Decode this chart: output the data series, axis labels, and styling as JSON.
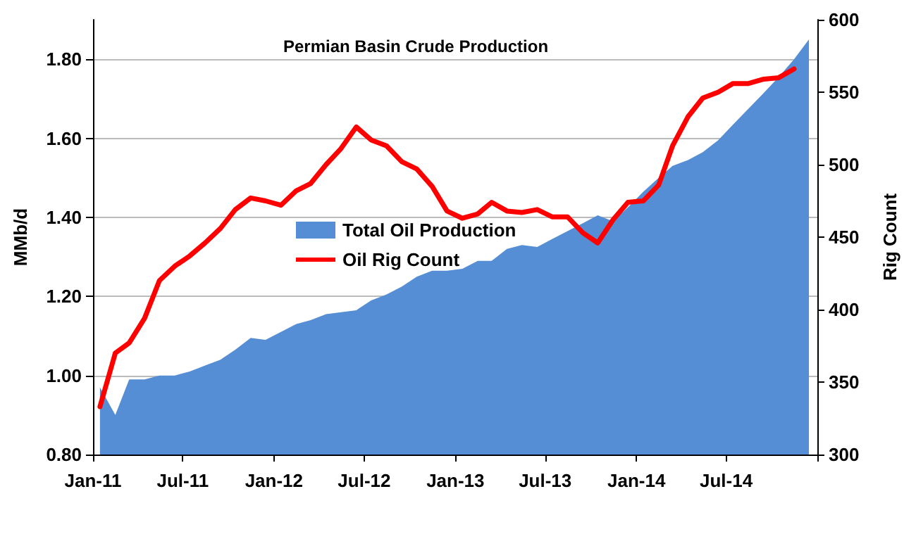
{
  "chart_data": {
    "type": "area",
    "title": "Permian Basin Crude Production",
    "ylabel": "MMb/d",
    "y2label": "Rig Count",
    "x": [
      "2011-01-15",
      "2011-02-15",
      "2011-03-15",
      "2011-04-15",
      "2011-05-15",
      "2011-06-15",
      "2011-07-15",
      "2011-08-15",
      "2011-09-15",
      "2011-10-15",
      "2011-11-15",
      "2011-12-15",
      "2012-01-15",
      "2012-02-15",
      "2012-03-15",
      "2012-04-15",
      "2012-05-15",
      "2012-06-15",
      "2012-07-15",
      "2012-08-15",
      "2012-09-15",
      "2012-10-15",
      "2012-11-15",
      "2012-12-15",
      "2013-01-15",
      "2013-02-15",
      "2013-03-15",
      "2013-04-15",
      "2013-05-15",
      "2013-06-15",
      "2013-07-15",
      "2013-08-15",
      "2013-09-15",
      "2013-10-15",
      "2013-11-15",
      "2013-12-15",
      "2014-01-15",
      "2014-02-15",
      "2014-03-15",
      "2014-04-15",
      "2014-05-15",
      "2014-06-15",
      "2014-07-15",
      "2014-08-15",
      "2014-09-15",
      "2014-10-15",
      "2014-11-15",
      "2014-12-15"
    ],
    "series": [
      {
        "name": "Total Oil Production",
        "color": "#558ed5",
        "values": [
          0.97,
          0.9,
          0.99,
          0.99,
          1.0,
          1.0,
          1.01,
          1.025,
          1.04,
          1.065,
          1.095,
          1.09,
          1.11,
          1.13,
          1.14,
          1.155,
          1.16,
          1.165,
          1.19,
          1.205,
          1.225,
          1.25,
          1.265,
          1.265,
          1.27,
          1.29,
          1.29,
          1.32,
          1.33,
          1.325,
          1.345,
          1.365,
          1.385,
          1.405,
          1.39,
          1.425,
          1.465,
          1.5,
          1.53,
          1.545,
          1.565,
          1.595,
          1.635,
          1.675,
          1.715,
          1.755,
          1.8,
          1.85
        ]
      },
      {
        "name": "Oil Rig Count",
        "type": "line",
        "axis": "y2",
        "color": "#ff0000",
        "values": [
          333,
          370,
          377,
          394,
          420,
          430,
          437,
          446,
          456,
          469,
          477,
          475,
          472,
          482,
          487,
          500,
          511,
          526,
          517,
          513,
          502,
          497,
          485,
          468,
          463,
          466,
          474,
          468,
          467,
          469,
          464,
          464,
          453,
          446,
          462,
          474,
          475,
          486,
          513,
          533,
          546,
          550,
          556,
          556,
          559,
          560,
          566,
          null
        ]
      }
    ],
    "xlim": [
      "2011-01-01",
      "2015-01-01"
    ],
    "xticks": [
      {
        "value": "2011-01-01",
        "label": "Jan-11"
      },
      {
        "value": "2011-07-01",
        "label": "Jul-11"
      },
      {
        "value": "2012-01-01",
        "label": "Jan-12"
      },
      {
        "value": "2012-07-01",
        "label": "Jul-12"
      },
      {
        "value": "2013-01-01",
        "label": "Jan-13"
      },
      {
        "value": "2013-07-01",
        "label": "Jul-13"
      },
      {
        "value": "2014-01-01",
        "label": "Jan-14"
      },
      {
        "value": "2014-07-01",
        "label": "Jul-14"
      },
      {
        "value": "2015-01-01",
        "label": null
      }
    ],
    "ylim": [
      0.8,
      1.9
    ],
    "yticks": [
      {
        "value": 0.8,
        "label": "0.80"
      },
      {
        "value": 1.0,
        "label": "1.00"
      },
      {
        "value": 1.2,
        "label": "1.20"
      },
      {
        "value": 1.4,
        "label": "1.40"
      },
      {
        "value": 1.6,
        "label": "1.60"
      },
      {
        "value": 1.8,
        "label": "1.80"
      }
    ],
    "y2lim": [
      300,
      600
    ],
    "y2ticks": [
      300,
      350,
      400,
      450,
      500,
      550,
      600
    ],
    "grid": "y",
    "legend": "center",
    "marker": "none",
    "line_style": "solid"
  }
}
